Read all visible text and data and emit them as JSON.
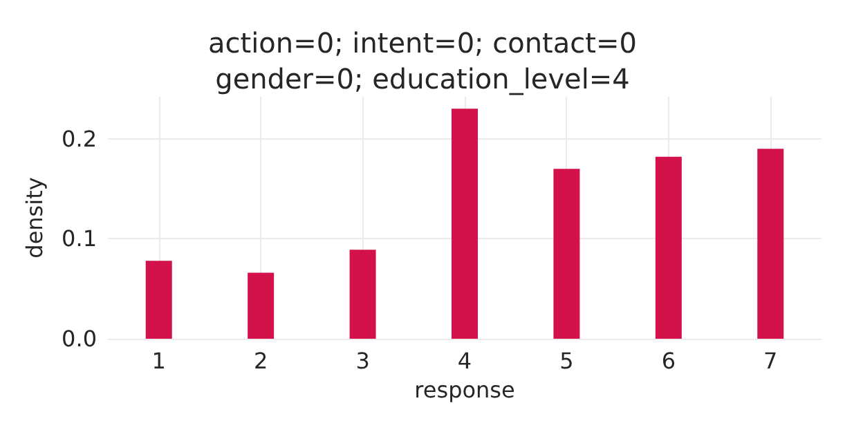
{
  "chart_data": {
    "type": "bar",
    "title": "action=0; intent=0; contact=0\ngender=0; education_level=4",
    "xlabel": "response",
    "ylabel": "density",
    "x": [
      1,
      2,
      3,
      4,
      5,
      6,
      7
    ],
    "values": [
      0.078,
      0.066,
      0.089,
      0.23,
      0.17,
      0.182,
      0.19
    ],
    "color": "#d3124b",
    "xlim": [
      0.5,
      7.5
    ],
    "xticks": [
      1,
      2,
      3,
      4,
      5,
      6,
      7
    ],
    "ylim": [
      0,
      0.242
    ],
    "yticks": [
      {
        "value": 0,
        "label": "0.0"
      },
      {
        "value": 0.1,
        "label": "0.1"
      },
      {
        "value": 0.2,
        "label": "0.2"
      }
    ],
    "grid": true
  }
}
